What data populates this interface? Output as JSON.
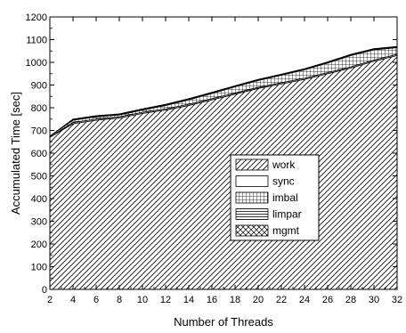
{
  "chart_data": {
    "type": "area",
    "stacked": true,
    "title": "",
    "xlabel": "Number of Threads",
    "ylabel": "Accumulated Time [sec]",
    "xlim": [
      2,
      32
    ],
    "ylim": [
      0,
      1200
    ],
    "xticks": [
      2,
      4,
      6,
      8,
      10,
      12,
      14,
      16,
      18,
      20,
      22,
      24,
      26,
      28,
      30,
      32
    ],
    "yticks": [
      0,
      100,
      200,
      300,
      400,
      500,
      600,
      700,
      800,
      900,
      1000,
      1100,
      1200
    ],
    "grid": false,
    "legend_position": "center-right",
    "x": [
      2,
      4,
      6,
      8,
      10,
      12,
      14,
      16,
      18,
      20,
      22,
      24,
      26,
      28,
      30,
      32
    ],
    "series": [
      {
        "name": "work",
        "pattern": "diagonal-hatch",
        "values": [
          670,
          730,
          745,
          755,
          775,
          790,
          810,
          835,
          860,
          885,
          905,
          925,
          950,
          975,
          1005,
          1030
        ]
      },
      {
        "name": "sync",
        "pattern": "solid-white",
        "values": [
          0,
          5,
          5,
          5,
          5,
          5,
          5,
          5,
          5,
          5,
          5,
          5,
          5,
          5,
          5,
          5
        ]
      },
      {
        "name": "imbal",
        "pattern": "grid-hatch",
        "values": [
          5,
          10,
          10,
          8,
          10,
          15,
          20,
          23,
          27,
          30,
          33,
          37,
          42,
          50,
          45,
          30
        ]
      },
      {
        "name": "limpar",
        "pattern": "horizontal-hatch",
        "values": [
          0,
          2,
          2,
          2,
          2,
          2,
          2,
          2,
          2,
          2,
          2,
          2,
          2,
          2,
          2,
          2
        ]
      },
      {
        "name": "mgmt",
        "pattern": "crosshatch",
        "values": [
          0,
          3,
          3,
          3,
          3,
          3,
          3,
          3,
          3,
          3,
          3,
          3,
          3,
          3,
          3,
          3
        ]
      }
    ]
  }
}
